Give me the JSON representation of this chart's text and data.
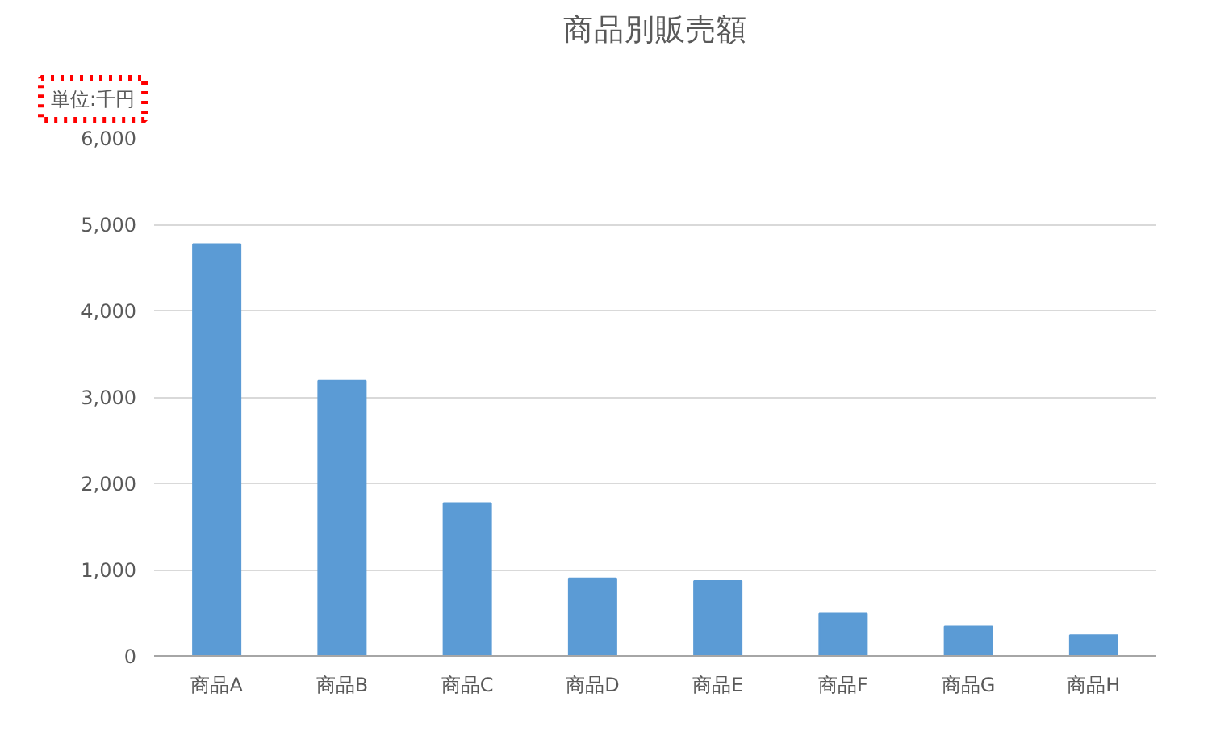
{
  "chart_data": {
    "type": "bar",
    "title": "商品別販売額",
    "annotations": [
      "単位:千円"
    ],
    "categories": [
      "商品A",
      "商品B",
      "商品C",
      "商品D",
      "商品E",
      "商品F",
      "商品G",
      "商品H"
    ],
    "values": [
      4770,
      3190,
      1770,
      900,
      870,
      490,
      340,
      240
    ],
    "color": "#5b9bd5",
    "ylim": [
      0,
      6000
    ],
    "yticks": [
      {
        "value": 0,
        "label": "0"
      },
      {
        "value": 1000,
        "label": "1,000"
      },
      {
        "value": 2000,
        "label": "2,000"
      },
      {
        "value": 3000,
        "label": "3,000"
      },
      {
        "value": 4000,
        "label": "4,000"
      },
      {
        "value": 5000,
        "label": "5,000"
      },
      {
        "value": 6000,
        "label": "6,000"
      }
    ],
    "grid": "y"
  }
}
